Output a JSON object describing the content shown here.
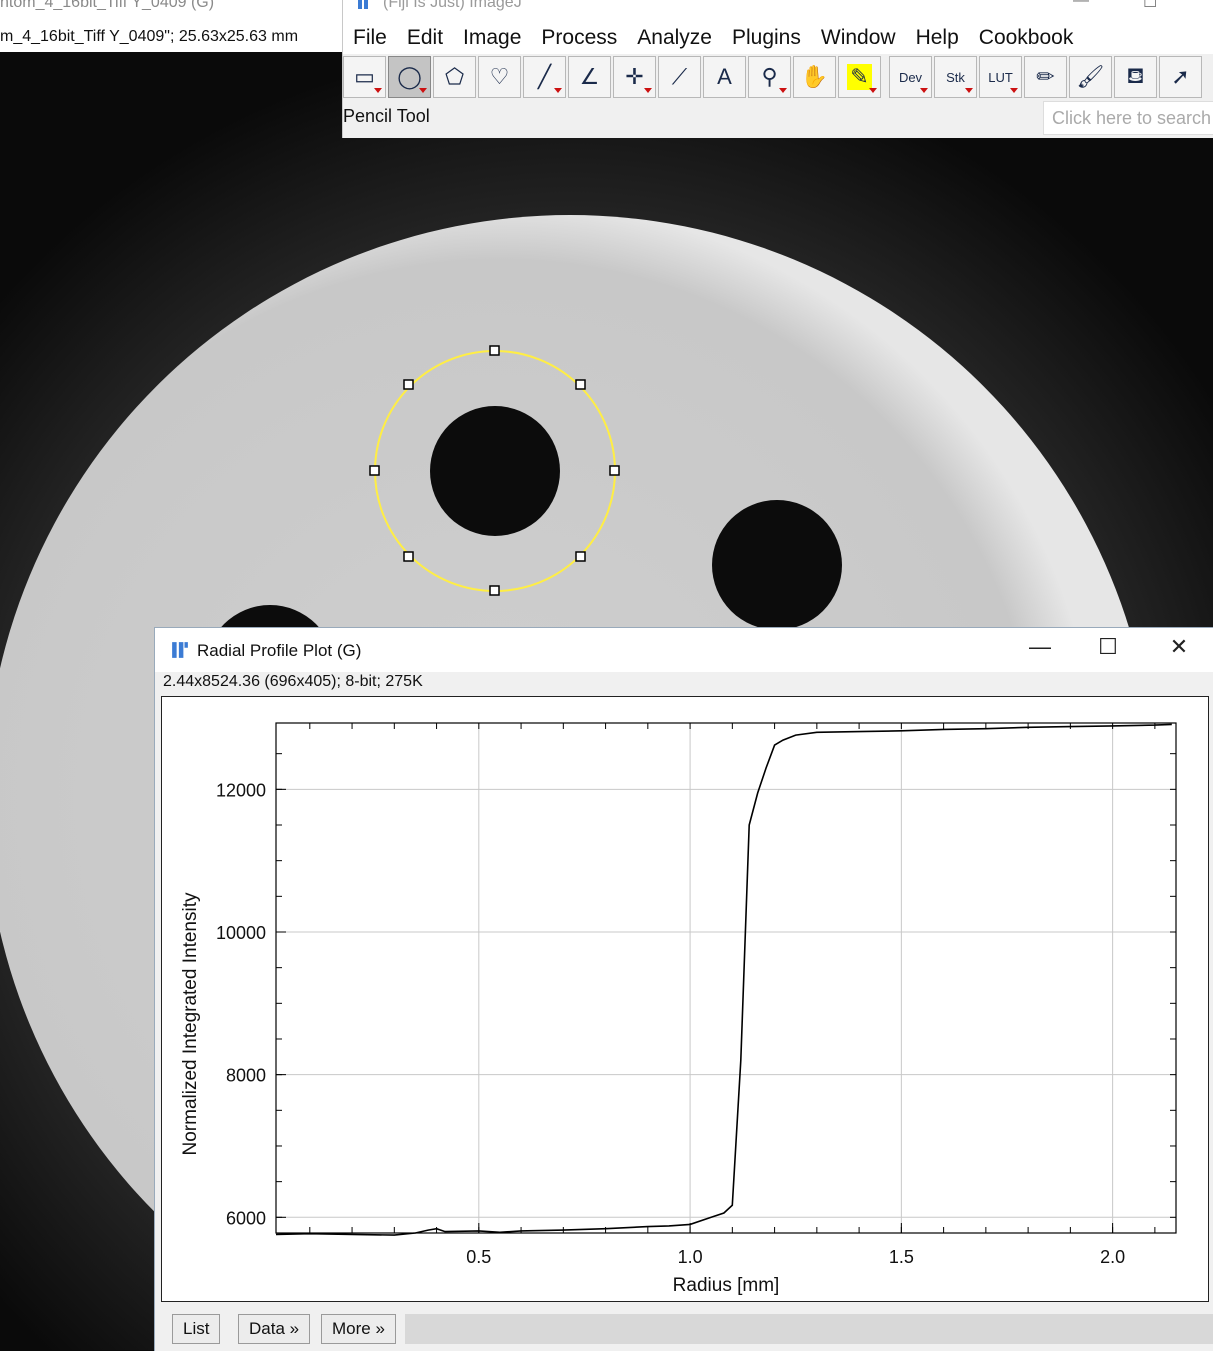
{
  "image_window": {
    "title": "ntom_4_16bit_Tiff Y_0409 (G)",
    "info": "m_4_16bit_Tiff Y_0409\"; 25.63x25.63 mm"
  },
  "fiji": {
    "title": "(Fiji Is Just) ImageJ",
    "menu": [
      "File",
      "Edit",
      "Image",
      "Process",
      "Analyze",
      "Plugins",
      "Window",
      "Help",
      "Cookbook"
    ],
    "tools": [
      {
        "name": "rectangle-tool-icon",
        "glyph": "▭",
        "menu": true
      },
      {
        "name": "oval-tool-icon",
        "glyph": "◯",
        "menu": true,
        "active": true
      },
      {
        "name": "polygon-tool-icon",
        "glyph": "⬠",
        "menu": false
      },
      {
        "name": "freehand-tool-icon",
        "glyph": "♡",
        "menu": false
      },
      {
        "name": "line-tool-icon",
        "glyph": "╱",
        "menu": true
      },
      {
        "name": "angle-tool-icon",
        "glyph": "∠",
        "menu": false
      },
      {
        "name": "point-tool-icon",
        "glyph": "✛",
        "menu": true
      },
      {
        "name": "wand-tool-icon",
        "glyph": "⟋",
        "menu": false
      },
      {
        "name": "text-tool-icon",
        "glyph": "A",
        "menu": false
      },
      {
        "name": "magnifier-tool-icon",
        "glyph": "⚲",
        "menu": true
      },
      {
        "name": "hand-tool-icon",
        "glyph": "✋",
        "menu": false
      },
      {
        "name": "color-picker-tool-icon",
        "glyph": "✎",
        "menu": true
      },
      {
        "name": "dev-menu-icon",
        "glyph": "Dev",
        "menu": true,
        "gap": true
      },
      {
        "name": "stk-menu-icon",
        "glyph": "Stk",
        "menu": true
      },
      {
        "name": "lut-menu-icon",
        "glyph": "LUT",
        "menu": true
      },
      {
        "name": "pencil-tool-icon",
        "glyph": "✏",
        "menu": false
      },
      {
        "name": "brush-tool-icon",
        "glyph": "🖌",
        "menu": false
      },
      {
        "name": "flood-fill-tool-icon",
        "glyph": "⛾",
        "menu": false
      },
      {
        "name": "arrow-tool-icon",
        "glyph": "➚",
        "menu": false
      }
    ],
    "status": "Pencil Tool",
    "search_placeholder": "Click here to search"
  },
  "plot_window": {
    "title": "Radial Profile Plot (G)",
    "info": "2.44x8524.36   (696x405); 8-bit; 275K",
    "buttons": [
      "List",
      "Data »",
      "More »"
    ]
  },
  "chart_data": {
    "type": "line",
    "xlabel": "Radius [mm]",
    "ylabel": "Normalized Integrated Intensity",
    "xlim": [
      0.02,
      2.15
    ],
    "ylim": [
      5780,
      12930
    ],
    "xticks": [
      0.5,
      1.0,
      1.5,
      2.0
    ],
    "xtick_labels": [
      "0.5",
      "1.0",
      "1.5",
      "2.0"
    ],
    "yticks": [
      6000,
      8000,
      10000,
      12000
    ],
    "ytick_labels": [
      "6000",
      "8000",
      "10000",
      "12000"
    ],
    "grid": true,
    "series": [
      {
        "x": [
          0.02,
          0.1,
          0.2,
          0.3,
          0.35,
          0.38,
          0.4,
          0.42,
          0.5,
          0.55,
          0.6,
          0.7,
          0.8,
          0.9,
          0.95,
          1.0,
          1.05,
          1.08,
          1.1,
          1.12,
          1.14,
          1.16,
          1.18,
          1.2,
          1.22,
          1.25,
          1.3,
          1.4,
          1.5,
          1.6,
          1.7,
          1.8,
          1.9,
          2.0,
          2.1,
          2.14
        ],
        "y": [
          5760,
          5770,
          5760,
          5750,
          5780,
          5820,
          5840,
          5800,
          5810,
          5790,
          5810,
          5820,
          5840,
          5870,
          5880,
          5900,
          6000,
          6060,
          6170,
          8200,
          11500,
          11950,
          12300,
          12620,
          12690,
          12760,
          12800,
          12810,
          12820,
          12840,
          12850,
          12870,
          12880,
          12890,
          12900,
          12910
        ]
      }
    ]
  }
}
